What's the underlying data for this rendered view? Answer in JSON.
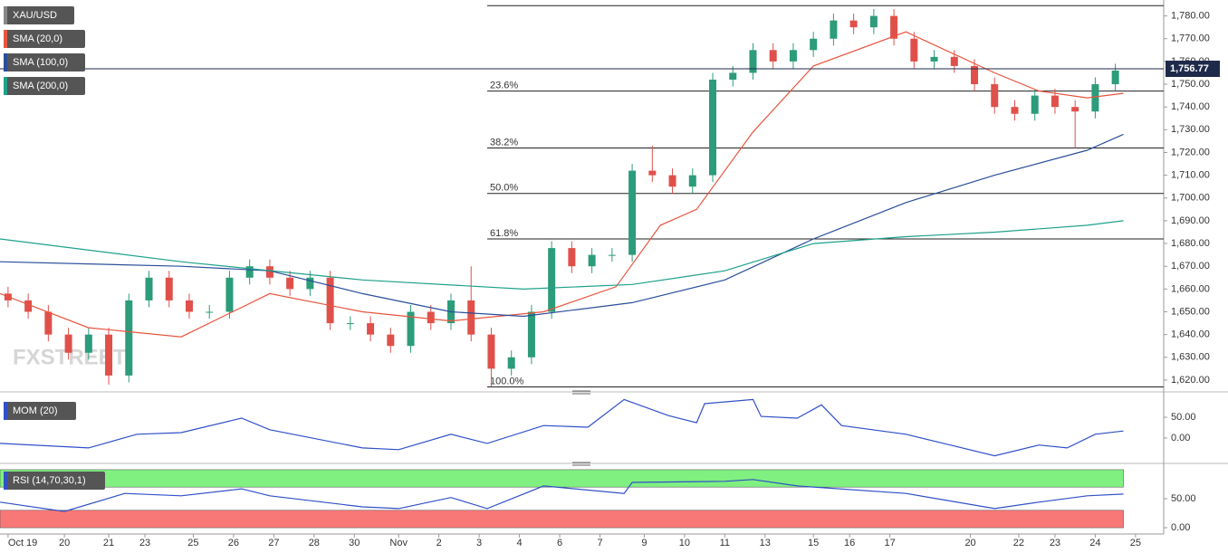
{
  "chart_data": [
    {
      "type": "candlestick",
      "title": "XAU/USD",
      "watermark": "FXSTREET",
      "x": [
        0.2,
        0.7,
        1.2,
        1.7,
        2.2,
        2.7,
        3.2,
        3.7,
        4.2,
        4.7,
        5.2,
        5.7,
        6.2,
        6.7,
        7.2,
        7.7,
        8.2,
        8.7,
        9.2,
        9.7,
        10.2,
        10.7,
        11.2,
        11.7,
        12.2,
        12.7,
        13.2,
        13.7,
        14.2,
        14.7,
        15.2,
        15.7,
        16.2,
        16.7,
        17.2,
        17.7,
        18.2,
        18.7,
        19.2,
        19.7,
        20.2,
        20.7,
        21.2,
        21.7,
        22.2,
        22.7,
        23.2,
        23.7,
        24.2,
        24.7,
        25.2,
        25.7,
        26.2,
        26.7,
        27.2,
        27.7
      ],
      "open": [
        1658,
        1655,
        1650,
        1640,
        1632,
        1640,
        1622,
        1655,
        1665,
        1655,
        1650,
        1650,
        1665,
        1670,
        1665,
        1660,
        1665,
        1645,
        1645,
        1640,
        1635,
        1650,
        1645,
        1655,
        1640,
        1625,
        1630,
        1650,
        1678,
        1670,
        1675,
        1675,
        1712,
        1710,
        1705,
        1710,
        1752,
        1755,
        1765,
        1760,
        1765,
        1770,
        1778,
        1775,
        1780,
        1770,
        1760,
        1762,
        1758,
        1750,
        1740,
        1737,
        1745,
        1740,
        1738,
        1750
      ],
      "high": [
        1661,
        1658,
        1653,
        1643,
        1643,
        1643,
        1658,
        1668,
        1668,
        1658,
        1653,
        1668,
        1673,
        1673,
        1668,
        1668,
        1668,
        1648,
        1648,
        1643,
        1653,
        1653,
        1658,
        1670,
        1643,
        1633,
        1653,
        1681,
        1681,
        1678,
        1678,
        1715,
        1723,
        1713,
        1713,
        1755,
        1758,
        1768,
        1768,
        1768,
        1773,
        1781,
        1781,
        1783,
        1783,
        1773,
        1765,
        1765,
        1761,
        1753,
        1743,
        1748,
        1748,
        1743,
        1753,
        1759
      ],
      "low": [
        1652,
        1647,
        1637,
        1629,
        1629,
        1618,
        1619,
        1652,
        1652,
        1647,
        1647,
        1647,
        1662,
        1662,
        1657,
        1657,
        1642,
        1642,
        1637,
        1632,
        1632,
        1642,
        1642,
        1637,
        1617,
        1622,
        1627,
        1647,
        1667,
        1667,
        1672,
        1672,
        1707,
        1702,
        1702,
        1707,
        1749,
        1752,
        1757,
        1757,
        1762,
        1767,
        1772,
        1772,
        1767,
        1757,
        1757,
        1755,
        1747,
        1737,
        1734,
        1734,
        1737,
        1722,
        1735,
        1747
      ],
      "close": [
        1655,
        1650,
        1640,
        1632,
        1640,
        1622,
        1655,
        1665,
        1655,
        1650,
        1650,
        1665,
        1670,
        1665,
        1660,
        1665,
        1645,
        1645,
        1640,
        1635,
        1650,
        1645,
        1655,
        1640,
        1625,
        1630,
        1650,
        1678,
        1670,
        1675,
        1675,
        1712,
        1710,
        1705,
        1710,
        1752,
        1755,
        1765,
        1760,
        1765,
        1770,
        1778,
        1775,
        1780,
        1770,
        1760,
        1762,
        1758,
        1750,
        1740,
        1737,
        1745,
        1740,
        1738,
        1750,
        1756
      ],
      "up_color": "#2c9c7a",
      "down_color": "#e0504a",
      "series": [
        {
          "name": "SMA (20,0)",
          "color": "#e8553e",
          "x": [
            0,
            2.2,
            4.5,
            6.7,
            9,
            11.2,
            13.5,
            15.3,
            16.4,
            17.3,
            18.7,
            20.2,
            22.5,
            24.7,
            25.8,
            27,
            27.9
          ],
          "values": [
            1658,
            1643,
            1639,
            1658,
            1650,
            1646,
            1650,
            1661,
            1688,
            1695,
            1729,
            1758,
            1773,
            1755,
            1747,
            1744,
            1746
          ]
        },
        {
          "name": "SMA (100,0)",
          "color": "#2a4e9a",
          "x": [
            0,
            4.5,
            6.7,
            9,
            11.2,
            13,
            15.7,
            18,
            20.2,
            22.5,
            24.7,
            27,
            27.9
          ],
          "values": [
            1672,
            1670,
            1668,
            1658,
            1650,
            1648,
            1654,
            1664,
            1682,
            1698,
            1710,
            1721,
            1728
          ]
        },
        {
          "name": "SMA (200,0)",
          "color": "#1fa08a",
          "x": [
            0,
            4.5,
            9,
            13,
            15.7,
            18,
            20.2,
            22.5,
            24.7,
            27,
            27.9
          ],
          "values": [
            1682,
            1672,
            1664,
            1660,
            1662,
            1668,
            1680,
            1683,
            1685,
            1688,
            1690
          ]
        }
      ],
      "levels": [
        1784.5,
        1747,
        1722,
        1702,
        1682,
        1617
      ],
      "level_labels": [
        null,
        "23.6%",
        "38.2%",
        "50.0%",
        "61.8%",
        "100.0%"
      ],
      "level_start_x": 12.1,
      "last_price": {
        "value": 1756.77,
        "label": "1,756.77"
      },
      "xlim": [
        0,
        28.9
      ],
      "ylim": [
        1616,
        1787
      ],
      "yticks": [
        {
          "value": 1620,
          "label": "1,620.00"
        },
        {
          "value": 1630,
          "label": "1,630.00"
        },
        {
          "value": 1640,
          "label": "1,640.00"
        },
        {
          "value": 1650,
          "label": "1,650.00"
        },
        {
          "value": 1660,
          "label": "1,660.00"
        },
        {
          "value": 1670,
          "label": "1,670.00"
        },
        {
          "value": 1680,
          "label": "1,680.00"
        },
        {
          "value": 1690,
          "label": "1,690.00"
        },
        {
          "value": 1700,
          "label": "1,700.00"
        },
        {
          "value": 1710,
          "label": "1,710.00"
        },
        {
          "value": 1720,
          "label": "1,720.00"
        },
        {
          "value": 1730,
          "label": "1,730.00"
        },
        {
          "value": 1740,
          "label": "1,740.00"
        },
        {
          "value": 1750,
          "label": "1,750.00"
        },
        {
          "value": 1760,
          "label": "1,760.00"
        },
        {
          "value": 1770,
          "label": "1,770.00"
        },
        {
          "value": 1780,
          "label": "1,780.00"
        }
      ]
    },
    {
      "type": "line",
      "series": [
        {
          "name": "MOM (20)",
          "color": "#3050c8",
          "x": [
            0,
            2.2,
            3.4,
            4.5,
            6,
            6.7,
            9,
            9.9,
            11.2,
            12.1,
            13.5,
            14.6,
            15.5,
            16.6,
            17.3,
            17.5,
            18.7,
            18.9,
            19.8,
            20.4,
            20.9,
            22.5,
            23.6,
            24.7,
            25.8,
            26.5,
            27.2,
            27.9
          ],
          "values": [
            -13,
            -24,
            9,
            13,
            48,
            20,
            -24,
            -28,
            9,
            -13,
            30,
            26,
            93,
            54,
            37,
            83,
            93,
            52,
            48,
            80,
            30,
            9,
            -17,
            -43,
            -17,
            -24,
            9,
            17
          ]
        }
      ],
      "xlim": [
        0,
        28.9
      ],
      "ylim": [
        -46,
        96
      ],
      "yticks": [
        {
          "value": 0,
          "label": "0.00"
        },
        {
          "value": 50,
          "label": "50.00"
        }
      ]
    },
    {
      "type": "line",
      "series": [
        {
          "name": "RSI (14,70,30,1)",
          "color": "#3050c8",
          "x": [
            0,
            1.6,
            3.1,
            4.5,
            6,
            6.7,
            9,
            9.9,
            11.2,
            12.1,
            13.5,
            15.5,
            15.7,
            18,
            18.7,
            19.8,
            22.5,
            24.7,
            25.8,
            27,
            27.9
          ],
          "values": [
            44,
            28,
            59,
            55,
            67,
            55,
            36,
            33,
            52,
            33,
            72,
            59,
            78,
            80,
            83,
            72,
            59,
            33,
            44,
            55,
            58
          ]
        }
      ],
      "bands": [
        {
          "from": 70,
          "to": 100,
          "color": "#80f080"
        },
        {
          "from": 0,
          "to": 30,
          "color": "#f87878"
        }
      ],
      "xlim": [
        0,
        28.9
      ],
      "ylim": [
        -3,
        103
      ],
      "yticks": [
        {
          "value": 0,
          "label": "0.00"
        },
        {
          "value": 50,
          "label": "50.00"
        }
      ],
      "xticks": [
        {
          "value": 0.2,
          "label": "Oct 19"
        },
        {
          "value": 1.6,
          "label": "20"
        },
        {
          "value": 2.7,
          "label": "21"
        },
        {
          "value": 3.6,
          "label": "23"
        },
        {
          "value": 4.8,
          "label": "25"
        },
        {
          "value": 5.8,
          "label": "26"
        },
        {
          "value": 6.8,
          "label": "27"
        },
        {
          "value": 7.8,
          "label": "28"
        },
        {
          "value": 8.8,
          "label": "30"
        },
        {
          "value": 9.9,
          "label": "Nov"
        },
        {
          "value": 10.9,
          "label": "2"
        },
        {
          "value": 11.9,
          "label": "3"
        },
        {
          "value": 12.9,
          "label": "4"
        },
        {
          "value": 13.9,
          "label": "6"
        },
        {
          "value": 14.9,
          "label": "7"
        },
        {
          "value": 16.0,
          "label": "9"
        },
        {
          "value": 17.0,
          "label": "10"
        },
        {
          "value": 18.0,
          "label": "11"
        },
        {
          "value": 19.0,
          "label": "13"
        },
        {
          "value": 20.2,
          "label": "15"
        },
        {
          "value": 21.1,
          "label": "16"
        },
        {
          "value": 22.1,
          "label": "17"
        },
        {
          "value": 24.1,
          "label": "20"
        },
        {
          "value": 25.3,
          "label": "22"
        },
        {
          "value": 26.2,
          "label": "23"
        },
        {
          "value": 27.2,
          "label": "24"
        },
        {
          "value": 28.2,
          "label": "25"
        }
      ]
    }
  ]
}
